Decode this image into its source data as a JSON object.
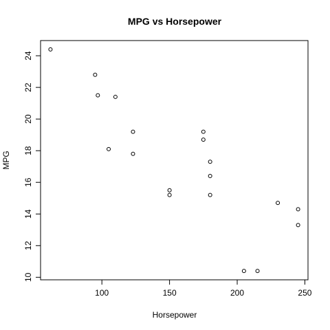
{
  "chart_data": {
    "type": "scatter",
    "title": "MPG vs Horsepower",
    "xlabel": "Horsepower",
    "ylabel": "MPG",
    "xlim": [
      62,
      245
    ],
    "ylim": [
      10.4,
      24.4
    ],
    "xticks": [
      100,
      150,
      200,
      250
    ],
    "yticks": [
      10,
      12,
      14,
      16,
      18,
      20,
      22,
      24
    ],
    "grid": false,
    "legend": "none",
    "marker": "open-circle",
    "point_color": "#000000",
    "points": [
      {
        "x": 62,
        "y": 24.4
      },
      {
        "x": 95,
        "y": 22.8
      },
      {
        "x": 97,
        "y": 21.5
      },
      {
        "x": 110,
        "y": 21.4
      },
      {
        "x": 123,
        "y": 19.2
      },
      {
        "x": 105,
        "y": 18.1
      },
      {
        "x": 123,
        "y": 17.8
      },
      {
        "x": 175,
        "y": 19.2
      },
      {
        "x": 175,
        "y": 18.7
      },
      {
        "x": 180,
        "y": 17.3
      },
      {
        "x": 180,
        "y": 16.4
      },
      {
        "x": 150,
        "y": 15.5
      },
      {
        "x": 150,
        "y": 15.2
      },
      {
        "x": 180,
        "y": 15.2
      },
      {
        "x": 230,
        "y": 14.7
      },
      {
        "x": 245,
        "y": 14.3
      },
      {
        "x": 245,
        "y": 13.3
      },
      {
        "x": 205,
        "y": 10.4
      },
      {
        "x": 215,
        "y": 10.4
      }
    ]
  }
}
